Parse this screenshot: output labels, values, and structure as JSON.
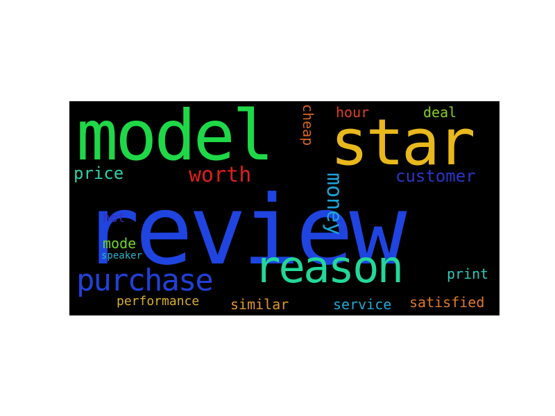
{
  "wordcloud": {
    "background": "#000000",
    "words": {
      "review": {
        "text": "review",
        "color": "#1f44e0"
      },
      "model": {
        "text": "model",
        "color": "#1fd848"
      },
      "star": {
        "text": "star",
        "color": "#e8b81c"
      },
      "reason": {
        "text": "reason",
        "color": "#22d89a"
      },
      "purchase": {
        "text": "purchase",
        "color": "#2140d8"
      },
      "worth": {
        "text": "worth",
        "color": "#e01e1e"
      },
      "money": {
        "text": "money",
        "color": "#1fa3d8"
      },
      "customer": {
        "text": "customer",
        "color": "#2a36c8"
      },
      "price": {
        "text": "price",
        "color": "#2ed0a8"
      },
      "cheap": {
        "text": "cheap",
        "color": "#d8641f"
      },
      "hour": {
        "text": "hour",
        "color": "#e0401f"
      },
      "deal": {
        "text": "deal",
        "color": "#86d020"
      },
      "hot": {
        "text": "hot",
        "color": "#3a2fb0"
      },
      "mode": {
        "text": "mode",
        "color": "#6cd62a"
      },
      "speaker": {
        "text": "speaker",
        "color": "#28b8c8"
      },
      "print": {
        "text": "print",
        "color": "#2ec8b8"
      },
      "performance": {
        "text": "performance",
        "color": "#d8b02a"
      },
      "similar": {
        "text": "similar",
        "color": "#e0982a"
      },
      "service": {
        "text": "service",
        "color": "#22a8d8"
      },
      "satisfied": {
        "text": "satisfied",
        "color": "#e0782a"
      }
    }
  }
}
